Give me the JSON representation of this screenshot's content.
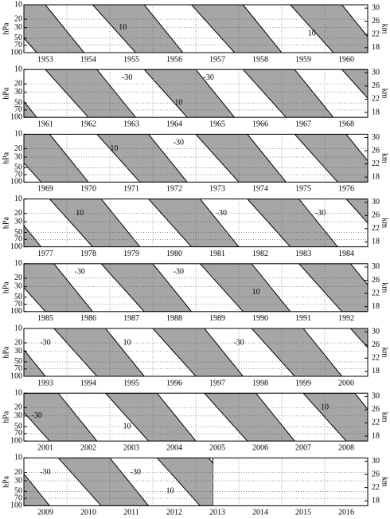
{
  "chart_data": [
    {
      "type": "contour",
      "categories": [
        "1953",
        "1954",
        "1955",
        "1956",
        "1957",
        "1958",
        "1959",
        "1960"
      ],
      "xlim": [
        1953,
        1961
      ],
      "xticks": [
        1954,
        1955,
        1956,
        1957,
        1958,
        1959,
        1960
      ],
      "ylim": [
        10,
        100
      ],
      "yticks": [
        10,
        20,
        30,
        50,
        70,
        100
      ],
      "log": true,
      "ylabel": "hPa",
      "y2lim": [
        16.5,
        31
      ],
      "y2ticks": [
        30,
        26,
        22,
        18
      ],
      "y2label": "km",
      "grid": true,
      "color": "#a6a6a6",
      "westerly": [
        [
          1952.3,
          1953.5,
          1953.3,
          1954.4
        ],
        [
          1954.6,
          1955.8,
          1955.6,
          1956.7
        ],
        [
          1956.9,
          1958.1,
          1957.9,
          1959.0
        ],
        [
          1959.2,
          1960.4,
          1960.2,
          1961.3
        ]
      ],
      "labels": [
        {
          "text": "10",
          "x": 1955.3,
          "p": 30
        },
        {
          "text": "10",
          "x": 1959.7,
          "p": 40
        }
      ]
    },
    {
      "type": "contour",
      "categories": [
        "1961",
        "1962",
        "1963",
        "1964",
        "1965",
        "1966",
        "1967",
        "1968"
      ],
      "xlim": [
        1961,
        1969
      ],
      "xticks": [
        1962,
        1963,
        1964,
        1965,
        1966,
        1967,
        1968
      ],
      "ylim": [
        10,
        100
      ],
      "yticks": [
        10,
        20,
        30,
        50,
        70,
        100
      ],
      "log": true,
      "ylabel": "hPa",
      "y2lim": [
        16.5,
        31
      ],
      "y2ticks": [
        30,
        26,
        22,
        18
      ],
      "y2label": "km",
      "grid": true,
      "color": "#a6a6a6",
      "westerly": [
        [
          1959.2,
          1960.4,
          1960.2,
          1961.3
        ],
        [
          1961.5,
          1962.7,
          1962.5,
          1963.6
        ],
        [
          1963.8,
          1965.0,
          1964.8,
          1965.9
        ],
        [
          1966.1,
          1967.3,
          1967.1,
          1968.2
        ],
        [
          1968.4,
          1969.6,
          1969.4,
          1970.5
        ]
      ],
      "labels": [
        {
          "text": "-30",
          "x": 1963.4,
          "p": 15
        },
        {
          "text": "10",
          "x": 1964.6,
          "p": 50
        },
        {
          "text": "-30",
          "x": 1965.3,
          "p": 15
        }
      ]
    },
    {
      "type": "contour",
      "categories": [
        "1969",
        "1970",
        "1971",
        "1972",
        "1973",
        "1974",
        "1975",
        "1976"
      ],
      "xlim": [
        1969,
        1977
      ],
      "xticks": [
        1970,
        1971,
        1972,
        1973,
        1974,
        1975,
        1976
      ],
      "ylim": [
        10,
        100
      ],
      "yticks": [
        10,
        20,
        30,
        50,
        70,
        100
      ],
      "log": true,
      "ylabel": "hPa",
      "y2lim": [
        16.5,
        31
      ],
      "y2ticks": [
        30,
        26,
        22,
        18
      ],
      "y2label": "km",
      "grid": true,
      "color": "#a6a6a6",
      "westerly": [
        [
          1968.4,
          1969.6,
          1969.4,
          1970.5
        ],
        [
          1970.7,
          1971.9,
          1971.7,
          1972.8
        ],
        [
          1973.0,
          1974.2,
          1974.0,
          1975.1
        ],
        [
          1975.3,
          1976.5,
          1976.3,
          1977.4
        ]
      ],
      "labels": [
        {
          "text": "10",
          "x": 1971.1,
          "p": 20
        },
        {
          "text": "-30",
          "x": 1972.6,
          "p": 15
        }
      ]
    },
    {
      "type": "contour",
      "categories": [
        "1977",
        "1978",
        "1979",
        "1980",
        "1981",
        "1982",
        "1983",
        "1984"
      ],
      "xlim": [
        1977,
        1985
      ],
      "xticks": [
        1978,
        1979,
        1980,
        1981,
        1982,
        1983,
        1984
      ],
      "ylim": [
        10,
        100
      ],
      "yticks": [
        10,
        20,
        30,
        50,
        70,
        100
      ],
      "log": true,
      "ylabel": "hPa",
      "y2lim": [
        16.5,
        31
      ],
      "y2ticks": [
        30,
        26,
        22,
        18
      ],
      "y2label": "km",
      "grid": true,
      "color": "#a6a6a6",
      "westerly": [
        [
          1975.3,
          1976.5,
          1976.3,
          1977.4
        ],
        [
          1977.6,
          1978.8,
          1978.6,
          1979.7
        ],
        [
          1979.9,
          1981.1,
          1980.9,
          1982.0
        ],
        [
          1982.2,
          1983.4,
          1983.2,
          1984.3
        ],
        [
          1984.5,
          1985.7,
          1985.5,
          1986.6
        ]
      ],
      "labels": [
        {
          "text": "10",
          "x": 1978.3,
          "p": 20
        },
        {
          "text": "-30",
          "x": 1981.6,
          "p": 20
        },
        {
          "text": "-30",
          "x": 1983.9,
          "p": 20
        }
      ]
    },
    {
      "type": "contour",
      "categories": [
        "1985",
        "1986",
        "1987",
        "1988",
        "1989",
        "1990",
        "1991",
        "1992"
      ],
      "xlim": [
        1985,
        1993
      ],
      "xticks": [
        1986,
        1987,
        1988,
        1989,
        1990,
        1991,
        1992
      ],
      "ylim": [
        10,
        100
      ],
      "yticks": [
        10,
        20,
        30,
        50,
        70,
        100
      ],
      "log": true,
      "ylabel": "hPa",
      "y2lim": [
        16.5,
        31
      ],
      "y2ticks": [
        30,
        26,
        22,
        18
      ],
      "y2label": "km",
      "grid": true,
      "color": "#a6a6a6",
      "westerly": [
        [
          1984.5,
          1985.7,
          1985.5,
          1986.6
        ],
        [
          1986.8,
          1988.0,
          1987.8,
          1988.9
        ],
        [
          1989.1,
          1990.3,
          1990.1,
          1991.2
        ],
        [
          1991.4,
          1992.6,
          1992.4,
          1993.5
        ]
      ],
      "labels": [
        {
          "text": "-30",
          "x": 1986.3,
          "p": 15
        },
        {
          "text": "-30",
          "x": 1988.6,
          "p": 15
        },
        {
          "text": "10",
          "x": 1990.4,
          "p": 40
        }
      ]
    },
    {
      "type": "contour",
      "categories": [
        "1993",
        "1994",
        "1995",
        "1996",
        "1997",
        "1998",
        "1999",
        "2000"
      ],
      "xlim": [
        1993,
        2001
      ],
      "xticks": [
        1994,
        1995,
        1996,
        1997,
        1998,
        1999,
        2000
      ],
      "ylim": [
        10,
        100
      ],
      "yticks": [
        10,
        20,
        30,
        50,
        70,
        100
      ],
      "log": true,
      "ylabel": "hPa",
      "y2lim": [
        16.5,
        31
      ],
      "y2ticks": [
        30,
        26,
        22,
        18
      ],
      "y2label": "km",
      "grid": true,
      "color": "#a6a6a6",
      "westerly": [
        [
          1991.4,
          1992.6,
          1992.4,
          1993.5
        ],
        [
          1993.7,
          1994.9,
          1994.7,
          1995.8
        ],
        [
          1996.0,
          1997.2,
          1997.0,
          1998.1
        ],
        [
          1998.3,
          1999.5,
          1999.3,
          2000.4
        ],
        [
          2000.6,
          2001.8,
          2001.6,
          2002.7
        ]
      ],
      "labels": [
        {
          "text": "-30",
          "x": 1993.5,
          "p": 20
        },
        {
          "text": "10",
          "x": 1995.4,
          "p": 20
        },
        {
          "text": "-30",
          "x": 1998.0,
          "p": 20
        }
      ]
    },
    {
      "type": "contour",
      "categories": [
        "2001",
        "2002",
        "2003",
        "2004",
        "2005",
        "2006",
        "2007",
        "2008"
      ],
      "xlim": [
        2001,
        2009
      ],
      "xticks": [
        2002,
        2003,
        2004,
        2005,
        2006,
        2007,
        2008
      ],
      "ylim": [
        10,
        100
      ],
      "yticks": [
        10,
        20,
        30,
        50,
        70,
        100
      ],
      "log": true,
      "ylabel": "hPa",
      "y2lim": [
        16.5,
        31
      ],
      "y2ticks": [
        30,
        26,
        22,
        18
      ],
      "y2label": "km",
      "grid": true,
      "color": "#a6a6a6",
      "westerly": [
        [
          2000.6,
          2001.8,
          2001.6,
          2002.7
        ],
        [
          2002.9,
          2004.1,
          2003.9,
          2005.0
        ],
        [
          2005.2,
          2006.4,
          2006.2,
          2007.3
        ],
        [
          2007.5,
          2008.7,
          2008.5,
          2009.6
        ]
      ],
      "labels": [
        {
          "text": "-30",
          "x": 2001.3,
          "p": 30
        },
        {
          "text": "10",
          "x": 2003.4,
          "p": 50
        },
        {
          "text": "10",
          "x": 2008.0,
          "p": 20
        }
      ]
    },
    {
      "type": "contour",
      "categories": [
        "2009",
        "2010",
        "2011",
        "2012",
        "2013",
        "2014",
        "2015",
        "2016"
      ],
      "xlim": [
        2009,
        2017
      ],
      "xticks": [
        2010,
        2011,
        2012,
        2013,
        2014,
        2015,
        2016
      ],
      "ylim": [
        10,
        100
      ],
      "yticks": [
        10,
        20,
        30,
        50,
        70,
        100
      ],
      "log": true,
      "ylabel": "hPa",
      "y2lim": [
        16.5,
        31
      ],
      "y2ticks": [
        30,
        26,
        22,
        18
      ],
      "y2label": "km",
      "grid": true,
      "color": "#a6a6a6",
      "data_end": 2013.4,
      "westerly": [
        [
          2007.5,
          2008.7,
          2008.5,
          2009.6
        ],
        [
          2009.8,
          2011.0,
          2010.8,
          2011.9
        ],
        [
          2012.1,
          2013.3,
          2013.1,
          2014.2
        ]
      ],
      "labels": [
        {
          "text": "-30",
          "x": 2009.5,
          "p": 20
        },
        {
          "text": "-30",
          "x": 2011.6,
          "p": 20
        },
        {
          "text": "10",
          "x": 2012.4,
          "p": 50
        }
      ]
    }
  ]
}
